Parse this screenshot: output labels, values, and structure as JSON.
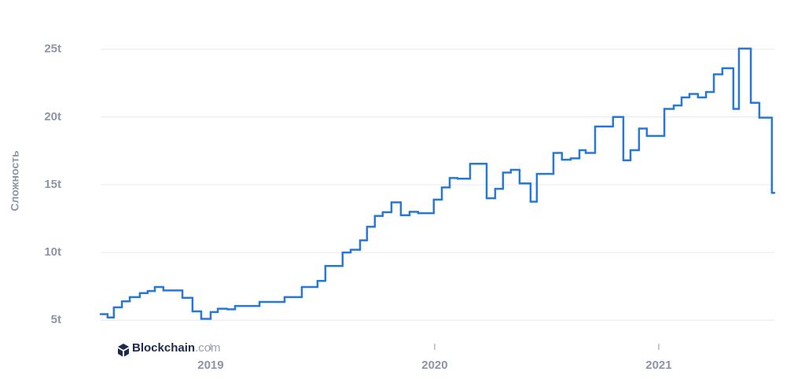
{
  "chart_data": {
    "type": "step-line",
    "y_label": "Сложность",
    "watermark_brand": "Blockchain",
    "watermark_suffix": ".com",
    "color": "#2a78d6",
    "grid": true,
    "xlim": [
      2018.509,
      2021.516
    ],
    "xticks": [
      {
        "value": 2019,
        "label": "2019"
      },
      {
        "value": 2020,
        "label": "2020"
      },
      {
        "value": 2021,
        "label": "2021"
      }
    ],
    "ylim": [
      4.2,
      26.2
    ],
    "yticks": [
      {
        "value": 5,
        "label": "5t"
      },
      {
        "value": 10,
        "label": "10t"
      },
      {
        "value": 15,
        "label": "15t"
      },
      {
        "value": 20,
        "label": "20t"
      },
      {
        "value": 25,
        "label": "25t"
      }
    ],
    "x": [
      2018.509,
      2018.54,
      2018.568,
      2018.604,
      2018.639,
      2018.684,
      2018.719,
      2018.751,
      2018.789,
      2018.874,
      2018.919,
      2018.958,
      2019.0,
      2019.032,
      2019.074,
      2019.109,
      2019.218,
      2019.33,
      2019.407,
      2019.477,
      2019.512,
      2019.589,
      2019.625,
      2019.667,
      2019.698,
      2019.733,
      2019.768,
      2019.807,
      2019.849,
      2019.888,
      2019.926,
      2019.996,
      2020.032,
      2020.067,
      2020.102,
      2020.158,
      2020.232,
      2020.27,
      2020.305,
      2020.34,
      2020.379,
      2020.428,
      2020.456,
      2020.53,
      2020.568,
      2020.607,
      2020.646,
      2020.674,
      2020.716,
      2020.796,
      2020.842,
      2020.874,
      2020.912,
      2020.947,
      2021.025,
      2021.067,
      2021.102,
      2021.137,
      2021.175,
      2021.211,
      2021.246,
      2021.284,
      2021.333,
      2021.358,
      2021.411,
      2021.449,
      2021.505
    ],
    "values": [
      5.45,
      5.2,
      5.95,
      6.39,
      6.7,
      7.0,
      7.15,
      7.45,
      7.2,
      6.65,
      5.65,
      5.1,
      5.6,
      5.85,
      5.8,
      6.05,
      6.35,
      6.7,
      7.45,
      7.9,
      9.0,
      10.0,
      10.2,
      10.9,
      11.9,
      12.7,
      12.97,
      13.7,
      12.75,
      13.0,
      12.9,
      13.9,
      14.8,
      15.5,
      15.45,
      16.55,
      14.0,
      14.7,
      15.9,
      16.1,
      15.1,
      13.75,
      15.8,
      17.35,
      16.85,
      16.95,
      17.55,
      17.35,
      19.3,
      20.0,
      16.8,
      17.55,
      19.15,
      18.6,
      20.6,
      20.85,
      21.45,
      21.7,
      21.45,
      21.85,
      23.15,
      23.6,
      20.6,
      25.05,
      21.05,
      19.95,
      14.4
    ]
  }
}
